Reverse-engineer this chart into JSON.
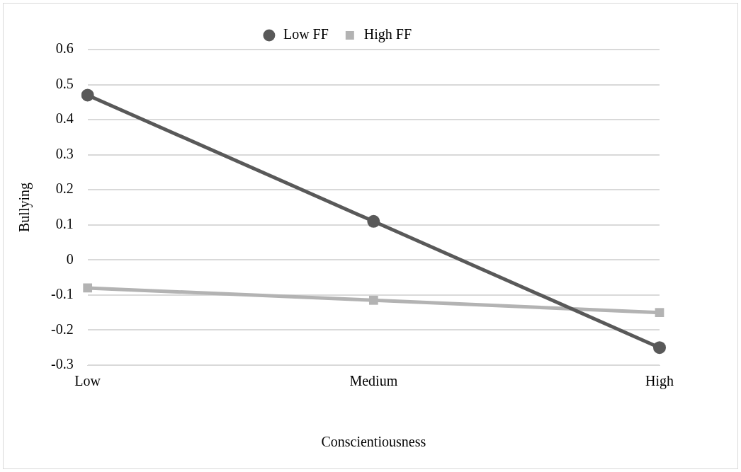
{
  "chart_data": {
    "type": "line",
    "xlabel": "Conscientiousness",
    "ylabel": "Bullying",
    "categories": [
      "Low",
      "Medium",
      "High"
    ],
    "series": [
      {
        "name": "Low FF",
        "color": "#595959",
        "values": [
          0.47,
          0.11,
          -0.25
        ],
        "marker": "circle"
      },
      {
        "name": "High FF",
        "color": "#b3b3b3",
        "values": [
          -0.08,
          -0.115,
          -0.15
        ],
        "marker": "square"
      }
    ],
    "ylim": [
      -0.3,
      0.6
    ],
    "yticks": [
      -0.3,
      -0.2,
      -0.1,
      0,
      0.1,
      0.2,
      0.3,
      0.4,
      0.5,
      0.6
    ],
    "grid": "y",
    "legend": "top",
    "line_style": "solid"
  }
}
